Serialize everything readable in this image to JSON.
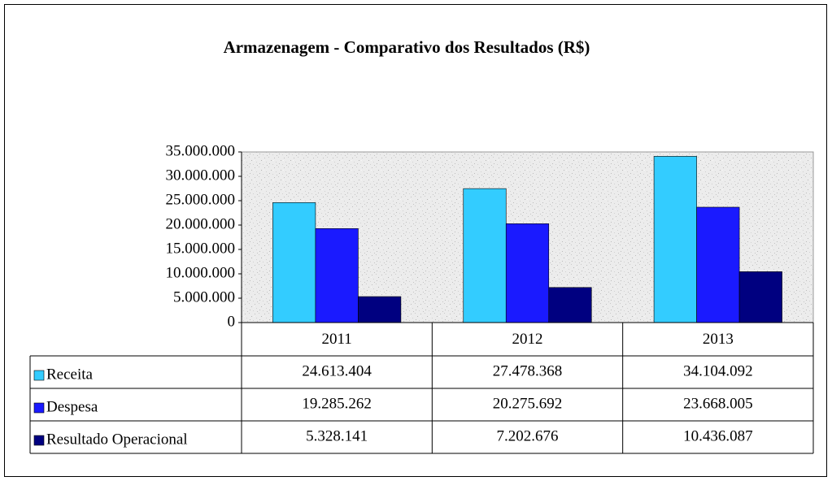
{
  "chart_data": {
    "type": "bar",
    "title": "Armazenagem - Comparativo dos Resultados (R$)",
    "categories": [
      "2011",
      "2012",
      "2013"
    ],
    "series": [
      {
        "name": "Receita",
        "color": "#33ccff",
        "values": [
          24613404,
          27478368,
          34104092
        ],
        "value_labels": [
          "24.613.404",
          "27.478.368",
          "34.104.092"
        ]
      },
      {
        "name": "Despesa",
        "color": "#1a1aff",
        "values": [
          19285262,
          20275692,
          23668005
        ],
        "value_labels": [
          "19.285.262",
          "20.275.692",
          "23.668.005"
        ]
      },
      {
        "name": "Resultado Operacional",
        "color": "#000080",
        "values": [
          5328141,
          7202676,
          10436087
        ],
        "value_labels": [
          "5.328.141",
          "7.202.676",
          "10.436.087"
        ]
      }
    ],
    "ylim": [
      0,
      35000000
    ],
    "yticks": [
      0,
      {
        "value": 5000000,
        "label": "5.000.000"
      },
      {
        "value": 10000000,
        "label": "10.000.000"
      },
      {
        "value": 15000000,
        "label": "15.000.000"
      },
      {
        "value": 20000000,
        "label": "20.000.000"
      },
      {
        "value": 25000000,
        "label": "25.000.000"
      },
      {
        "value": 30000000,
        "label": "30.000.000"
      },
      {
        "value": 35000000,
        "label": "35.000.000"
      }
    ],
    "grid": false
  }
}
